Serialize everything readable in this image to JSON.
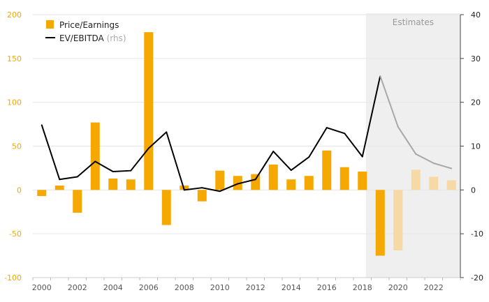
{
  "chart_data": {
    "type": "bar",
    "years": [
      2000,
      2001,
      2002,
      2003,
      2004,
      2005,
      2006,
      2007,
      2008,
      2009,
      2010,
      2011,
      2012,
      2013,
      2014,
      2015,
      2016,
      2017,
      2018,
      2019,
      2020,
      2021,
      2022,
      2023
    ],
    "x_tick_labels": [
      "2000",
      "2002",
      "2004",
      "2006",
      "2008",
      "2010",
      "2012",
      "2014",
      "2016",
      "2018",
      "2020",
      "2022"
    ],
    "series": [
      {
        "name": "Price/Earnings",
        "axis": "left",
        "type": "bar",
        "values": [
          -7,
          5,
          -26,
          77,
          13,
          12,
          180,
          -40,
          5,
          -13,
          22,
          16,
          18,
          29,
          12,
          16,
          45,
          26,
          21,
          -75,
          -69,
          23,
          15,
          11
        ]
      },
      {
        "name": "EV/EBITDA",
        "name_suffix": "(rhs)",
        "axis": "right",
        "type": "line",
        "values": [
          14.8,
          2.4,
          3.0,
          6.5,
          4.2,
          4.4,
          9.5,
          13.2,
          0.0,
          0.5,
          -0.3,
          1.4,
          2.4,
          8.8,
          4.5,
          7.5,
          14.2,
          12.9,
          7.6,
          26.0,
          14.4,
          8.2,
          6.1,
          4.9
        ]
      }
    ],
    "estimates_from_index": 19,
    "estimates_label": "Estimates",
    "left_axis": {
      "min": -100,
      "max": 200,
      "ticks": [
        200,
        150,
        100,
        50,
        0,
        -50,
        -100
      ]
    },
    "right_axis": {
      "min": -20,
      "max": 40,
      "ticks": [
        40,
        30,
        20,
        10,
        0,
        -10,
        -20
      ]
    },
    "colors": {
      "bar": "#f5a800",
      "bar_estimate": "#f6d9a4",
      "line": "#000000",
      "line_estimate": "#a8a8a8",
      "estimate_bg": "#efefef",
      "grid": "#e6e6e6",
      "left_axis_text": "#f5a800"
    },
    "grid": true,
    "legend_position": "top-left",
    "title": "",
    "xlabel": "",
    "ylabel": ""
  }
}
